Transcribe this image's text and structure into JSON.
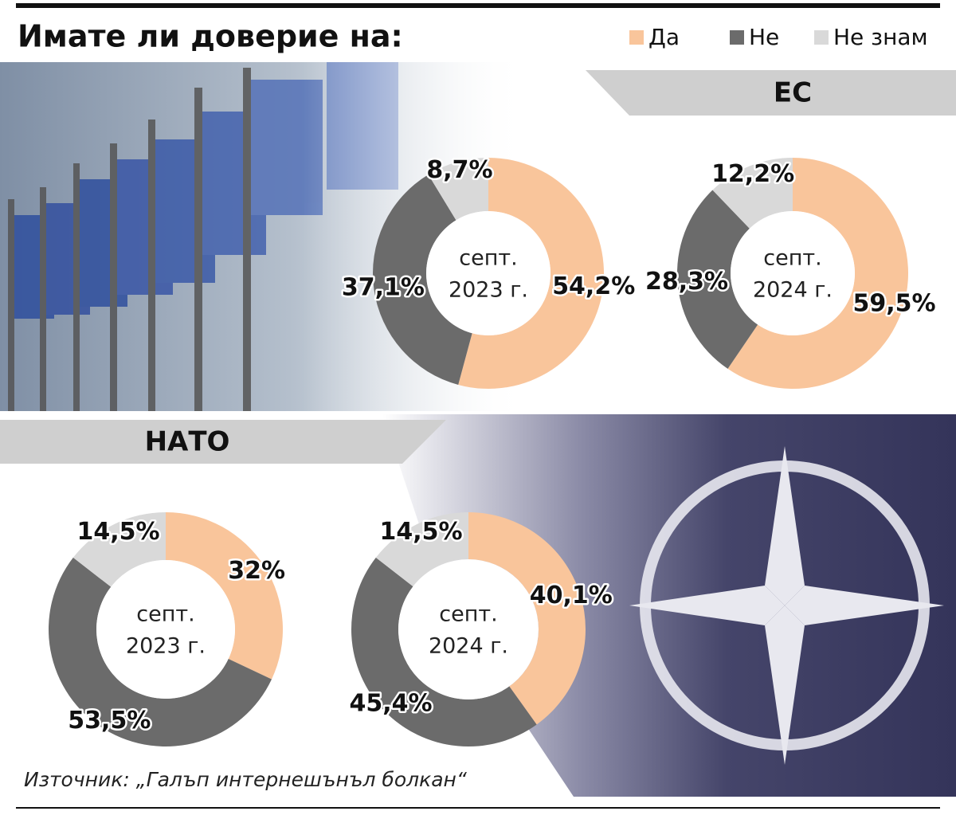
{
  "title": "Имате ли доверие на:",
  "sections": [
    "ЕС",
    "НАТО"
  ],
  "source": "Източник: „Галъп интернешънъл болкан“",
  "chart_data": [
    {
      "type": "donut",
      "center_label": [
        "септ.",
        "2023 г."
      ],
      "categories": [
        "Да",
        "Не",
        "Не знам"
      ],
      "colors": [
        "#f9c59b",
        "#6b6b6b",
        "#d9d9d9"
      ],
      "values": [
        54.2,
        37.1,
        8.7
      ],
      "value_labels": [
        "54,2%",
        "37,1%",
        "8,7%"
      ]
    },
    {
      "type": "donut",
      "center_label": [
        "септ.",
        "2024 г."
      ],
      "categories": [
        "Да",
        "Не",
        "Не знам"
      ],
      "colors": [
        "#f9c59b",
        "#6b6b6b",
        "#d9d9d9"
      ],
      "values": [
        59.5,
        28.3,
        12.2
      ],
      "value_labels": [
        "59,5%",
        "28,3%",
        "12,2%"
      ]
    },
    {
      "type": "donut",
      "center_label": [
        "септ.",
        "2023 г."
      ],
      "categories": [
        "Да",
        "Не",
        "Не знам"
      ],
      "colors": [
        "#f9c59b",
        "#6b6b6b",
        "#d9d9d9"
      ],
      "values": [
        32,
        53.5,
        14.5
      ],
      "value_labels": [
        "32%",
        "53,5%",
        "14,5%"
      ]
    },
    {
      "type": "donut",
      "center_label": [
        "септ.",
        "2024 г."
      ],
      "categories": [
        "Да",
        "Не",
        "Не знам"
      ],
      "colors": [
        "#f9c59b",
        "#6b6b6b",
        "#d9d9d9"
      ],
      "values": [
        40.1,
        45.4,
        14.5
      ],
      "value_labels": [
        "40,1%",
        "45,4%",
        "14,5%"
      ]
    }
  ]
}
